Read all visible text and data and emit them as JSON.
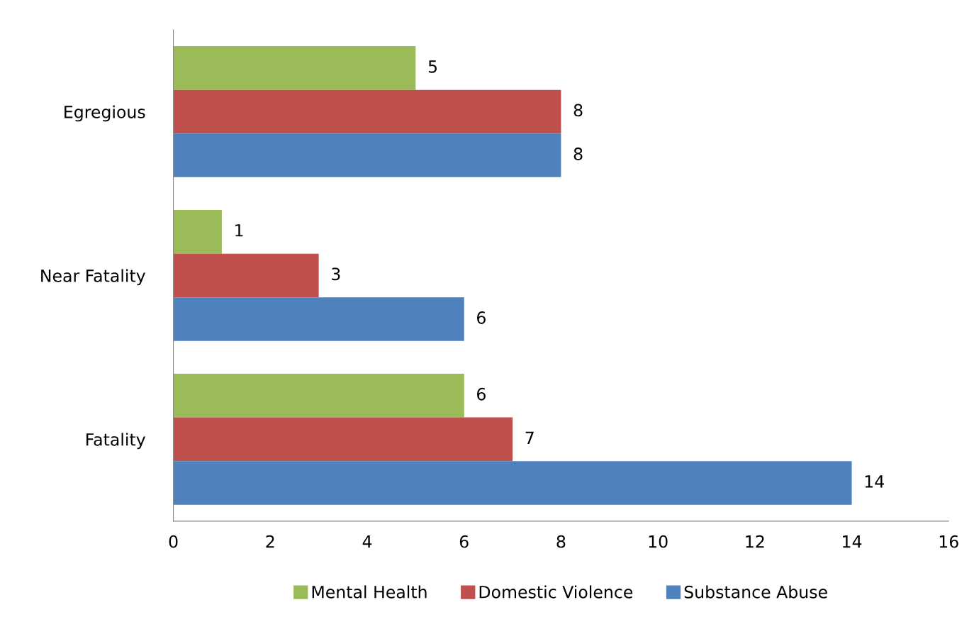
{
  "chart_data": {
    "type": "bar",
    "orientation": "horizontal",
    "categories": [
      "Egregious",
      "Near Fatality",
      "Fatality"
    ],
    "series": [
      {
        "name": "Mental Health",
        "color": "#9bbb59",
        "values": [
          5,
          1,
          6
        ]
      },
      {
        "name": "Domestic Violence",
        "color": "#c0504d",
        "values": [
          8,
          3,
          7
        ]
      },
      {
        "name": "Substance Abuse",
        "color": "#4f81bd",
        "values": [
          8,
          6,
          14
        ]
      }
    ],
    "xlim": [
      0,
      16
    ],
    "xticks": [
      0,
      2,
      4,
      6,
      8,
      10,
      12,
      14,
      16
    ],
    "data_labels": true,
    "grid": false,
    "legend": "bottom"
  }
}
